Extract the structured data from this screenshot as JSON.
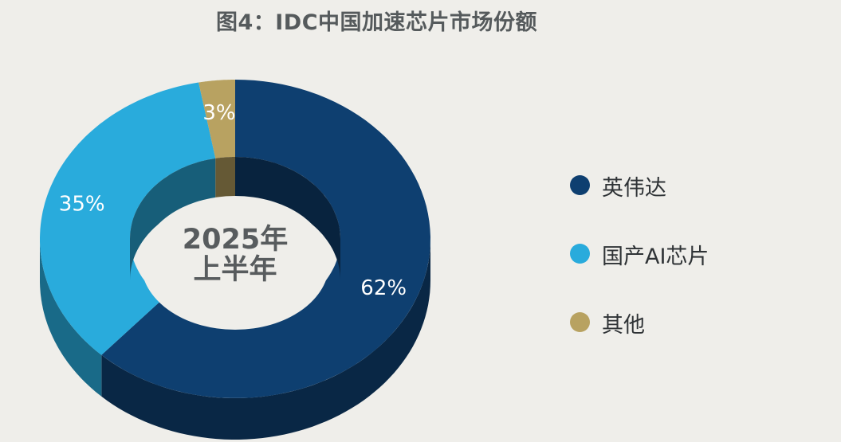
{
  "chart_data": {
    "type": "pie",
    "title": "图4：IDC中国加速芯片市场份额",
    "center_label": [
      "2025年",
      "上半年"
    ],
    "categories": [
      "英伟达",
      "国产AI芯片",
      "其他"
    ],
    "values": [
      62,
      35,
      3
    ],
    "value_labels": [
      "62%",
      "35%",
      "3%"
    ],
    "colors": [
      "#0e3f70",
      "#29abdc",
      "#b8a261"
    ],
    "legend": "right"
  }
}
